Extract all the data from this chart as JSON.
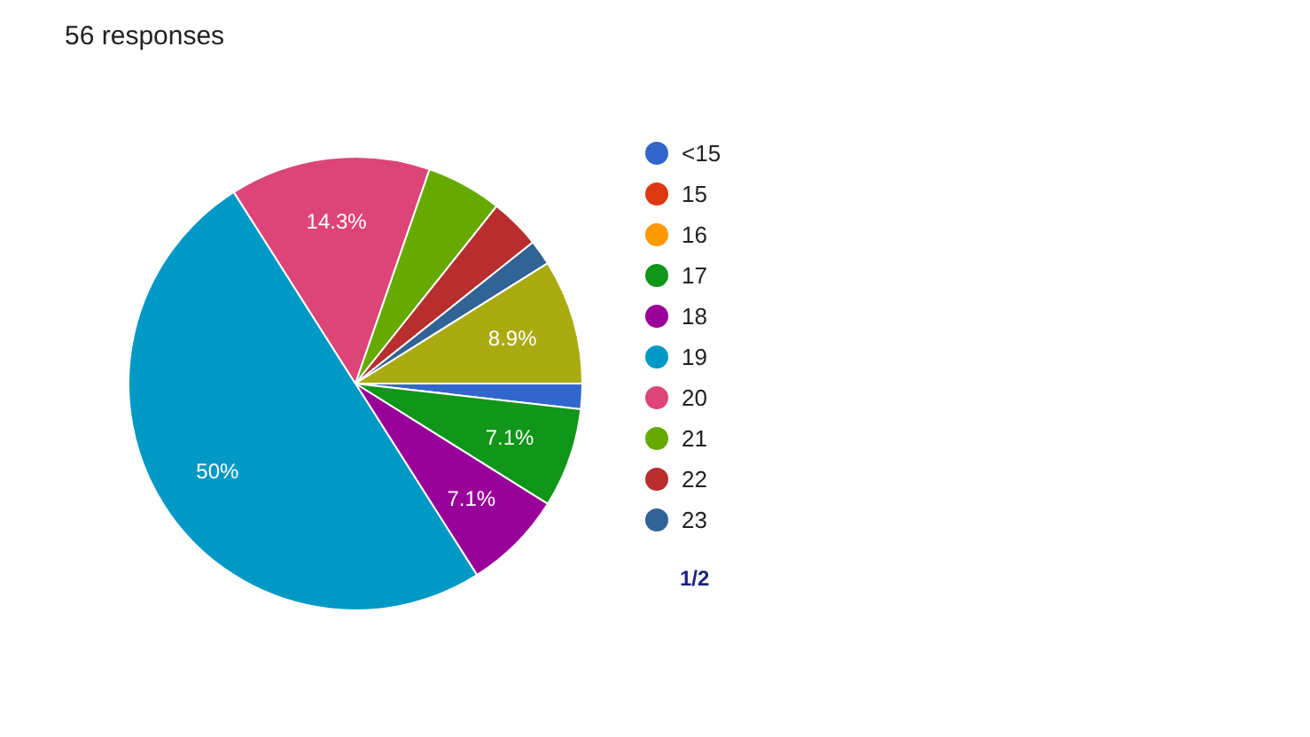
{
  "chart_data": {
    "type": "pie",
    "title": "56 responses",
    "categories": [
      "<15",
      "15",
      "16",
      "17",
      "18",
      "19",
      "20",
      "21",
      "22",
      "23",
      null
    ],
    "values": [
      1.8,
      0,
      0,
      7.1,
      7.1,
      50,
      14.3,
      5.4,
      3.6,
      1.8,
      8.9
    ],
    "colors": [
      "#3366cc",
      "#dc3912",
      "#ff9900",
      "#109618",
      "#990099",
      "#0099c6",
      "#dd4477",
      "#66aa00",
      "#b82e2e",
      "#316395",
      "#aaaa11"
    ],
    "value_labels": [
      null,
      null,
      null,
      "7.1%",
      "7.1%",
      "50%",
      "14.3%",
      null,
      null,
      null,
      "8.9%"
    ],
    "legend": "right",
    "annotations": [
      "1/2"
    ]
  }
}
